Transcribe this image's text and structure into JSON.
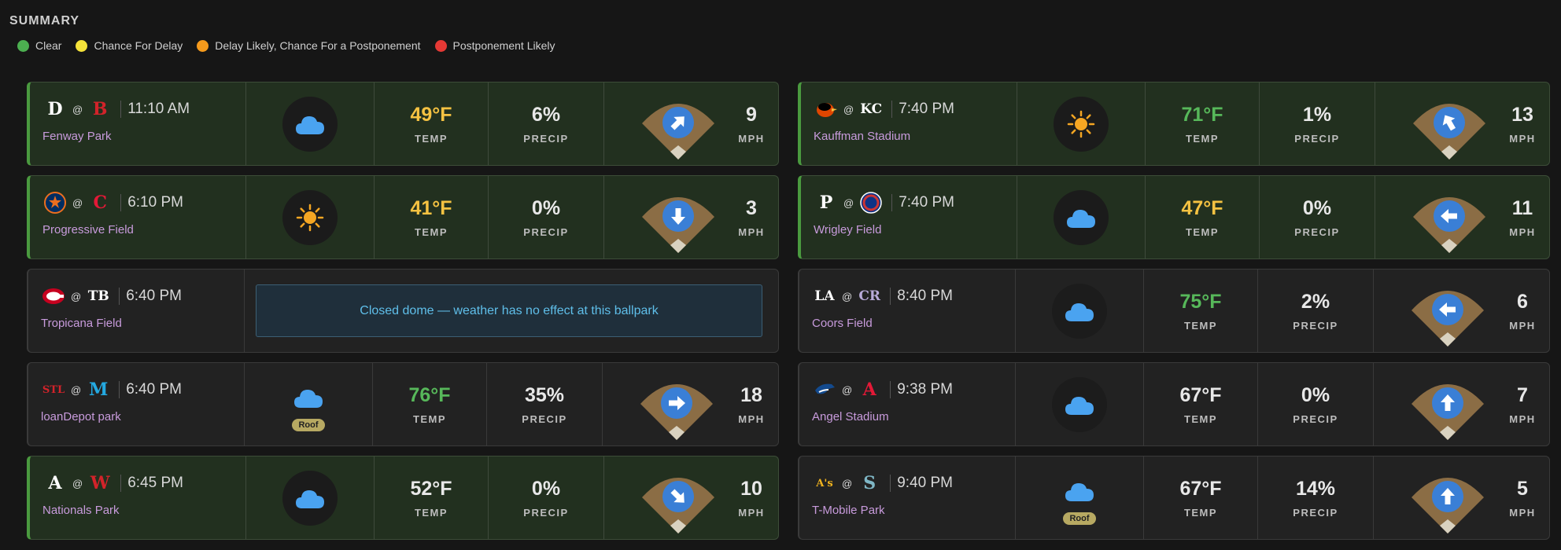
{
  "header": {
    "title": "SUMMARY"
  },
  "legend": [
    {
      "label": "Clear",
      "color": "#4caf50"
    },
    {
      "label": "Chance For Delay",
      "color": "#f5e23a"
    },
    {
      "label": "Delay Likely, Chance For a Postponement",
      "color": "#f59a1c"
    },
    {
      "label": "Postponement Likely",
      "color": "#e53935"
    }
  ],
  "labels": {
    "temp": "TEMP",
    "precip": "PRECIP",
    "mph": "MPH",
    "at": "@",
    "roof": "Roof"
  },
  "games": [
    {
      "away": "D",
      "away_color": "#ffffff",
      "home": "B",
      "home_color": "#d2232a",
      "time": "11:10 AM",
      "park": "Fenway Park",
      "status": "clear",
      "weather": "cloud",
      "temp": "49°F",
      "temp_color": "yellow",
      "precip": "6%",
      "wind_deg": 45,
      "wind": "9"
    },
    {
      "away": "KC-O",
      "away_icon": "oriole",
      "home": "KC",
      "home_color": "#ffffff",
      "time": "7:40 PM",
      "park": "Kauffman Stadium",
      "status": "clear",
      "weather": "sun",
      "temp": "71°F",
      "temp_color": "green",
      "precip": "1%",
      "wind_deg": -30,
      "wind": "13"
    },
    {
      "away": "H",
      "away_icon": "astros",
      "home": "C",
      "home_color": "#e31937",
      "time": "6:10 PM",
      "park": "Progressive Field",
      "status": "clear",
      "weather": "sun",
      "temp": "41°F",
      "temp_color": "yellow",
      "precip": "0%",
      "wind_deg": 180,
      "wind": "3"
    },
    {
      "away": "P",
      "away_color": "#ffffff",
      "home": "C",
      "home_icon": "cubs",
      "time": "7:40 PM",
      "park": "Wrigley Field",
      "status": "clear",
      "weather": "cloud",
      "temp": "47°F",
      "temp_color": "yellow",
      "precip": "0%",
      "wind_deg": -90,
      "wind": "11"
    },
    {
      "away": "C",
      "away_icon": "reds",
      "home": "TB",
      "home_color": "#ffffff",
      "time": "6:40 PM",
      "park": "Tropicana Field",
      "status": "neutral",
      "dome": true,
      "dome_message": "Closed dome — weather has no effect at this ballpark"
    },
    {
      "away": "LA",
      "away_color": "#ffffff",
      "home": "CR",
      "home_color": "#b8aad8",
      "time": "8:40 PM",
      "park": "Coors Field",
      "status": "neutral",
      "weather": "cloud",
      "temp": "75°F",
      "temp_color": "green",
      "precip": "2%",
      "wind_deg": -90,
      "wind": "6"
    },
    {
      "away": "STL",
      "away_color": "#d2232a",
      "home": "M",
      "home_color": "#24a9e1",
      "time": "6:40 PM",
      "park": "loanDepot park",
      "status": "neutral",
      "weather": "cloud",
      "roof": true,
      "temp": "76°F",
      "temp_color": "green",
      "precip": "35%",
      "wind_deg": 90,
      "wind": "18"
    },
    {
      "away": "TOR",
      "away_icon": "bluejay",
      "home": "A",
      "home_color": "#e31937",
      "time": "9:38 PM",
      "park": "Angel Stadium",
      "status": "neutral",
      "weather": "cloud",
      "temp": "67°F",
      "temp_color": "white",
      "precip": "0%",
      "wind_deg": 0,
      "wind": "7"
    },
    {
      "away": "A",
      "away_color": "#ffffff",
      "home": "W",
      "home_color": "#d2232a",
      "time": "6:45 PM",
      "park": "Nationals Park",
      "status": "clear",
      "weather": "cloud",
      "temp": "52°F",
      "temp_color": "white",
      "precip": "0%",
      "wind_deg": 135,
      "wind": "10"
    },
    {
      "away": "A's",
      "away_color": "#efb21e",
      "home": "S",
      "home_color": "#7fb7c6",
      "time": "9:40 PM",
      "park": "T-Mobile Park",
      "status": "neutral",
      "weather": "cloud",
      "roof": true,
      "temp": "67°F",
      "temp_color": "white",
      "precip": "14%",
      "wind_deg": 0,
      "wind": "5"
    }
  ]
}
